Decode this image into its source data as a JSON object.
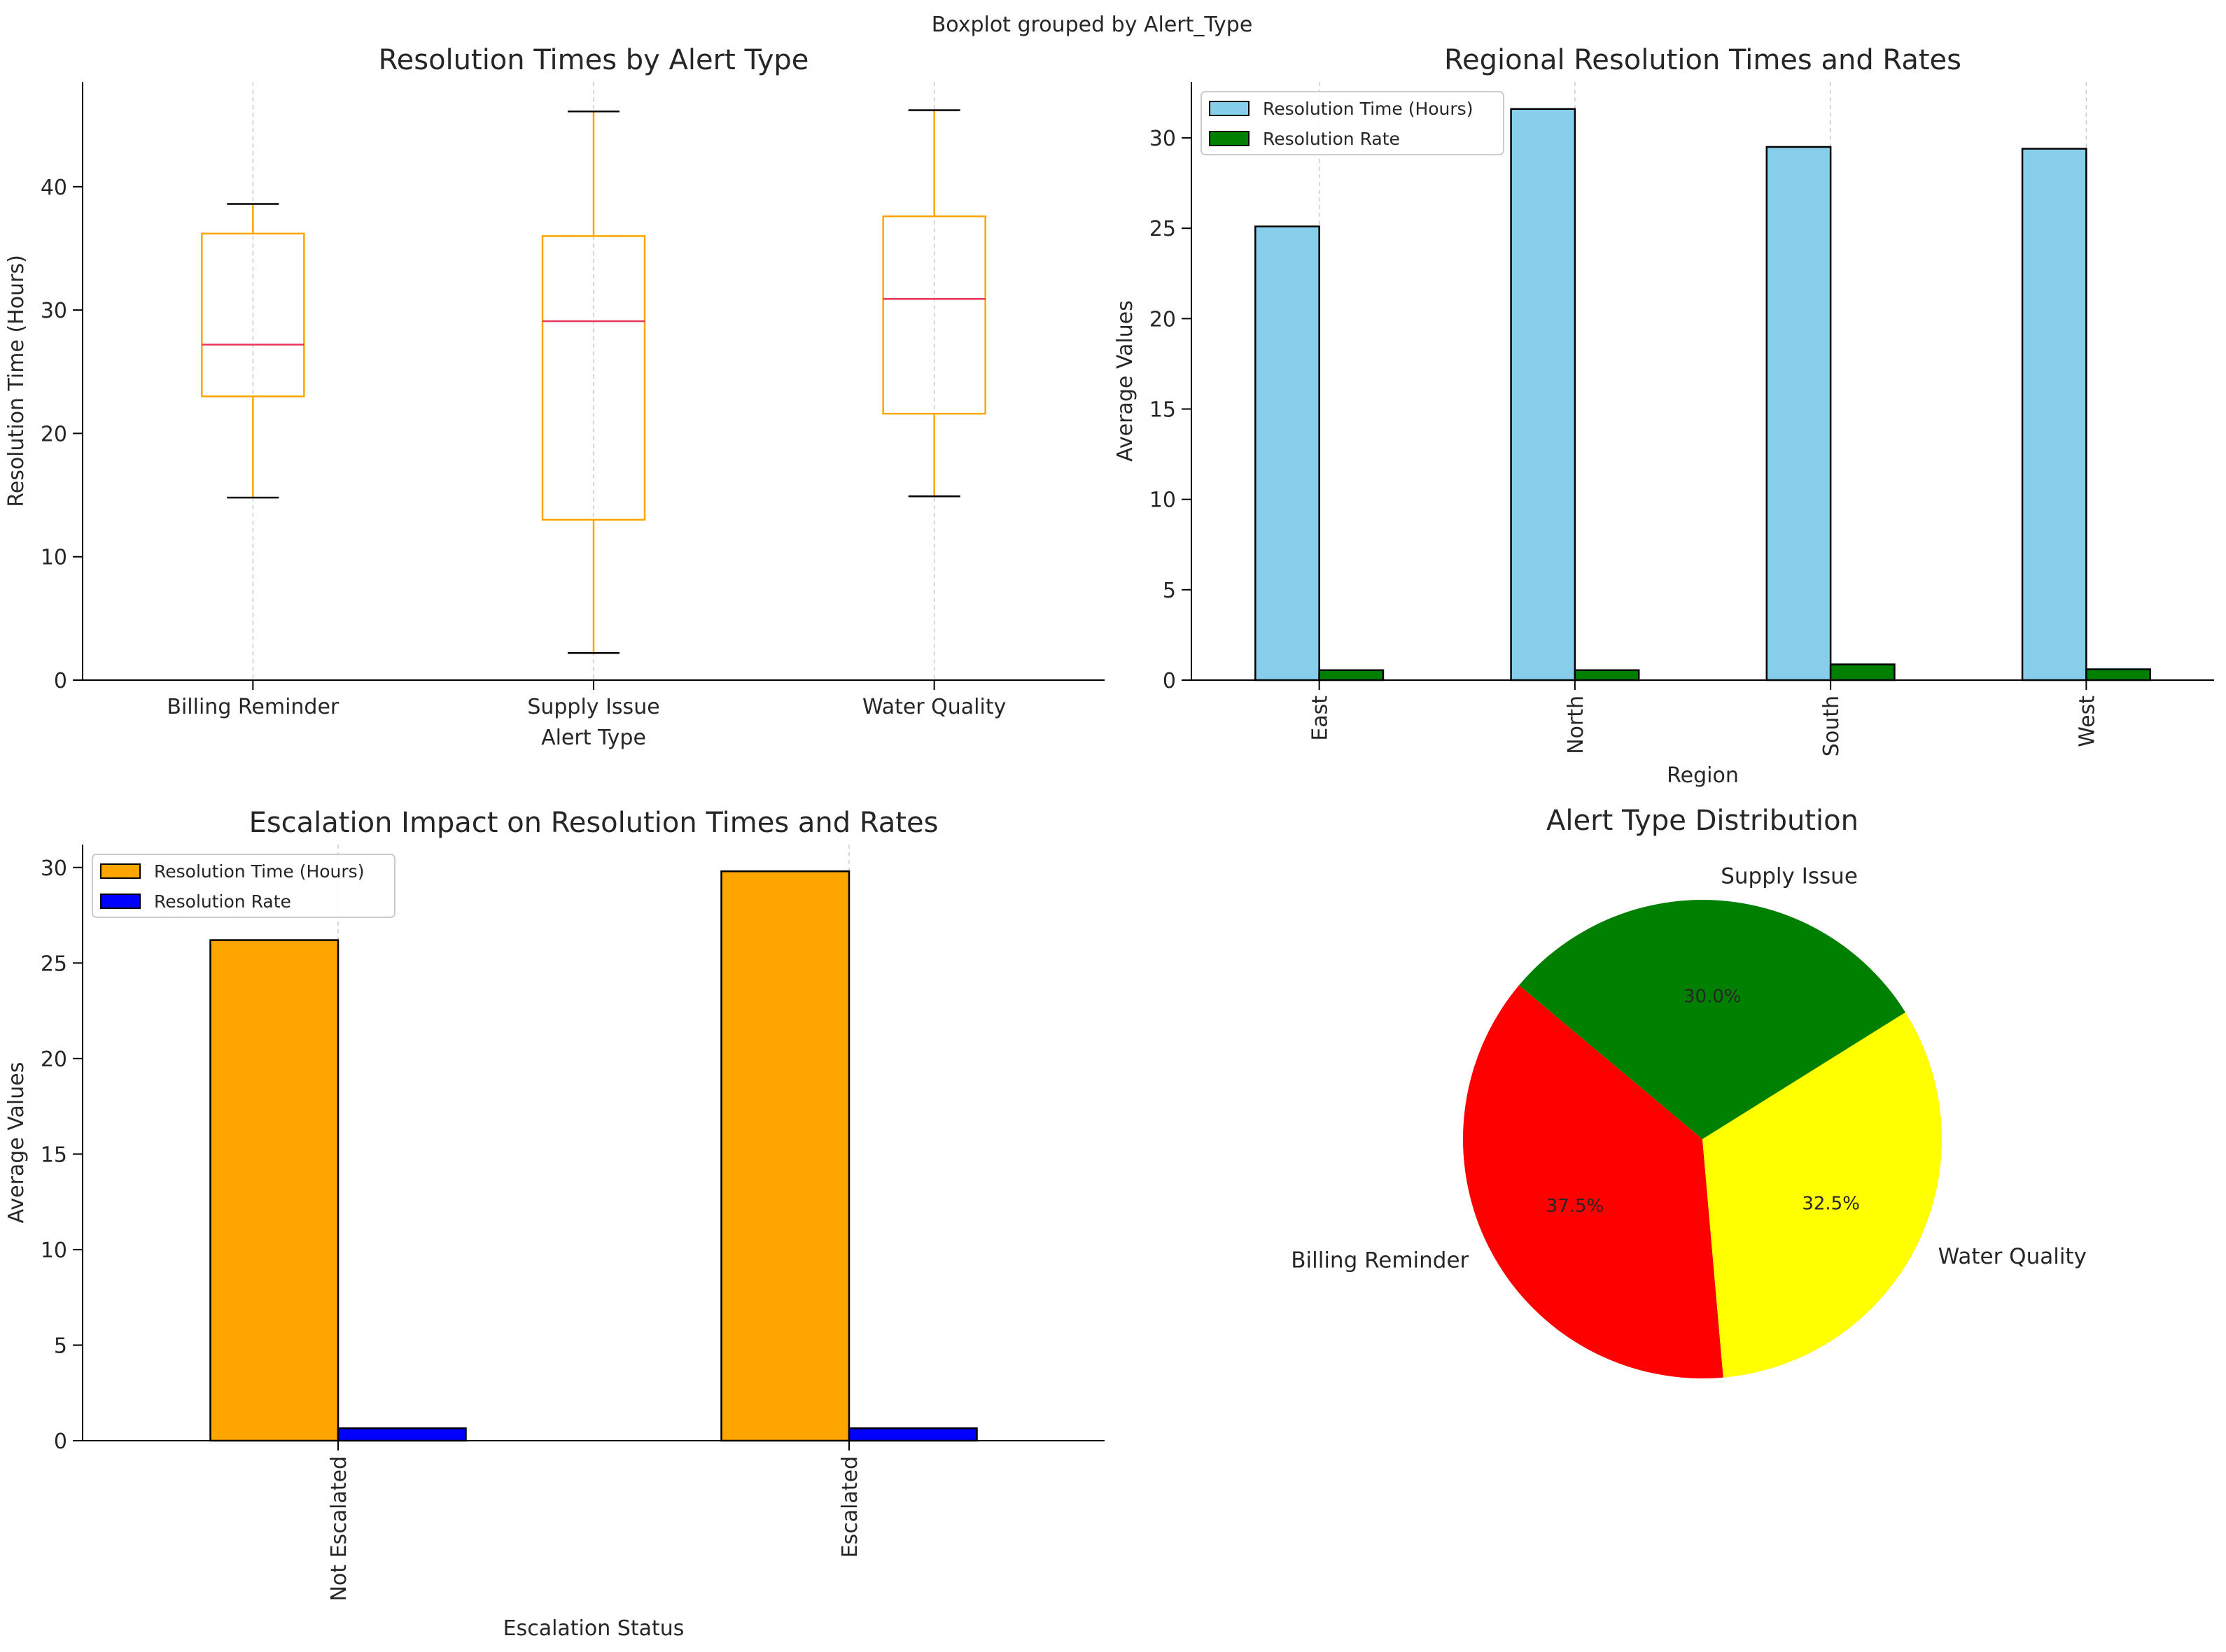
{
  "figure": {
    "suptitle": "Boxplot grouped by Alert_Type"
  },
  "chart_data": [
    {
      "type": "boxplot",
      "title": "Resolution Times by Alert Type",
      "xlabel": "Alert Type",
      "ylabel": "Resolution Time (Hours)",
      "ylim": [
        0,
        48.5
      ],
      "yticks": [
        0,
        10,
        20,
        30,
        40
      ],
      "grid": "x-dashed",
      "categories": [
        "Billing Reminder",
        "Supply Issue",
        "Water Quality"
      ],
      "boxes": [
        {
          "whisker_low": 14.8,
          "q1": 23.0,
          "median": 27.2,
          "q3": 36.2,
          "whisker_high": 38.6
        },
        {
          "whisker_low": 2.2,
          "q1": 13.0,
          "median": 29.1,
          "q3": 36.0,
          "whisker_high": 46.1
        },
        {
          "whisker_low": 14.9,
          "q1": 21.6,
          "median": 30.9,
          "q3": 37.6,
          "whisker_high": 46.2
        }
      ],
      "colors": {
        "box": "#FFA500",
        "median": "#E8365A",
        "cap": "#000000"
      }
    },
    {
      "type": "bar",
      "title": "Regional Resolution Times and Rates",
      "xlabel": "Region",
      "ylabel": "Average Values",
      "ylim": [
        0,
        33.1
      ],
      "yticks": [
        0,
        5,
        10,
        15,
        20,
        25,
        30
      ],
      "grid": "x-dashed",
      "legend": "top-left",
      "categories": [
        "East",
        "North",
        "South",
        "West"
      ],
      "series": [
        {
          "name": "Resolution Time (Hours)",
          "values": [
            25.1,
            31.6,
            29.5,
            29.4
          ],
          "color": "#87CEEB"
        },
        {
          "name": "Resolution Rate",
          "values": [
            0.55,
            0.55,
            0.87,
            0.6
          ],
          "color": "#008000"
        }
      ]
    },
    {
      "type": "bar",
      "title": "Escalation Impact on Resolution Times and Rates",
      "xlabel": "Escalation Status",
      "ylabel": "Average Values",
      "ylim": [
        0,
        31.2
      ],
      "yticks": [
        0,
        5,
        10,
        15,
        20,
        25,
        30
      ],
      "grid": "x-dashed",
      "legend": "top-left",
      "categories": [
        "Not Escalated",
        "Escalated"
      ],
      "series": [
        {
          "name": "Resolution Time (Hours)",
          "values": [
            26.2,
            29.8
          ],
          "color": "#FFA500"
        },
        {
          "name": "Resolution Rate",
          "values": [
            0.65,
            0.65
          ],
          "color": "#0000FF"
        }
      ]
    },
    {
      "type": "pie",
      "title": "Alert Type Distribution",
      "slices": [
        {
          "label": "Billing Reminder",
          "value": 37.5,
          "pct_label": "37.5%",
          "color": "#FF0000"
        },
        {
          "label": "Water Quality",
          "value": 32.5,
          "pct_label": "32.5%",
          "color": "#FFFF00"
        },
        {
          "label": "Supply Issue",
          "value": 30.0,
          "pct_label": "30.0%",
          "color": "#008000"
        }
      ]
    }
  ]
}
